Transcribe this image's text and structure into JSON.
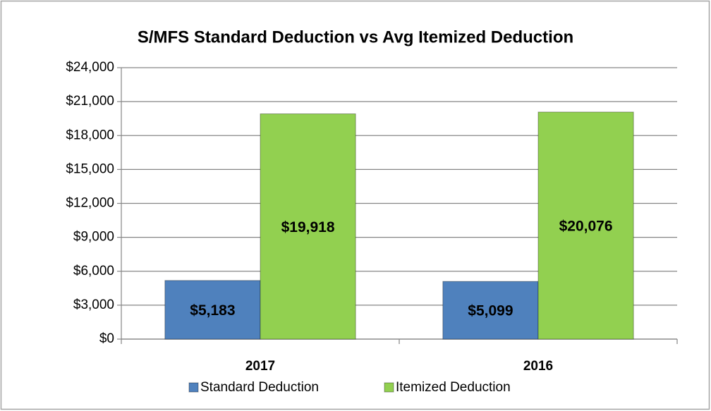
{
  "chart_data": {
    "type": "bar",
    "title": "S/MFS Standard Deduction vs Avg Itemized Deduction",
    "categories": [
      "2017",
      "2016"
    ],
    "series": [
      {
        "name": "Standard Deduction",
        "color": "#4f81bd",
        "values": [
          5183,
          5099
        ],
        "value_labels": [
          "$5,183",
          "$5,099"
        ]
      },
      {
        "name": "Itemized Deduction",
        "color": "#92d050",
        "values": [
          19918,
          20076
        ],
        "value_labels": [
          "$19,918",
          "$20,076"
        ]
      }
    ],
    "ylim": [
      0,
      24000
    ],
    "yticks": [
      {
        "value": 0,
        "label": "$0"
      },
      {
        "value": 3000,
        "label": "$3,000"
      },
      {
        "value": 6000,
        "label": "$6,000"
      },
      {
        "value": 9000,
        "label": "$9,000"
      },
      {
        "value": 12000,
        "label": "$12,000"
      },
      {
        "value": 15000,
        "label": "$15,000"
      },
      {
        "value": 18000,
        "label": "$18,000"
      },
      {
        "value": 21000,
        "label": "$21,000"
      },
      {
        "value": 24000,
        "label": "$24,000"
      }
    ],
    "grid": true,
    "legend": "bottom"
  }
}
